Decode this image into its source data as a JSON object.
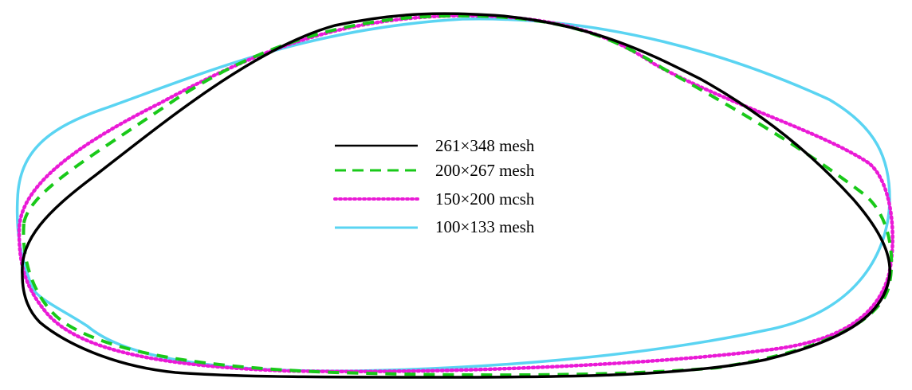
{
  "legend": {
    "items": [
      {
        "key": "s261",
        "label": "261×348 mesh",
        "color": "#000000",
        "style": "solid"
      },
      {
        "key": "s200",
        "label": "200×267 mesh",
        "color": "#19c919",
        "style": "dashed"
      },
      {
        "key": "s150",
        "label": "150×200 mcsh",
        "color": "#ea1ad6",
        "style": "dotted"
      },
      {
        "key": "s100",
        "label": "100×133 mesh",
        "color": "#5ad4f2",
        "style": "solid"
      }
    ]
  }
}
